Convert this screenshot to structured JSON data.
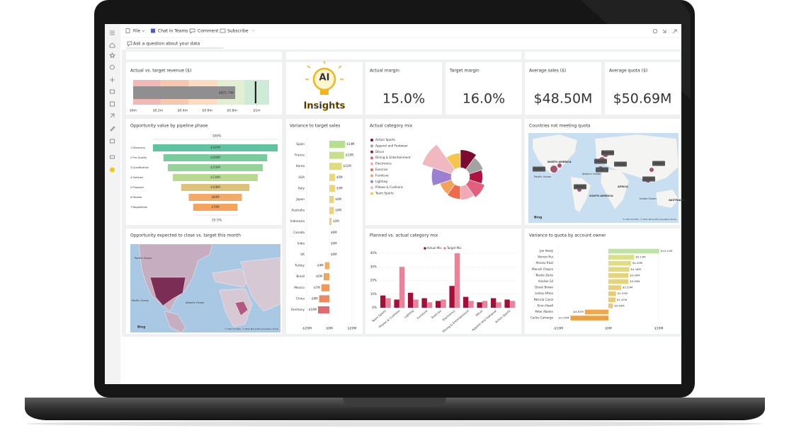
{
  "toolbar": {
    "items": [
      "File",
      "Chat in Teams",
      "Comment",
      "Subscribe",
      "···"
    ]
  },
  "qna": "Ask a question about your data",
  "tiles": {
    "revenue": {
      "title": "Actual vs. target revenue ($)",
      "value": 0.82574,
      "value_label": "$825.74K",
      "target": 0.99,
      "bands": [
        0.22,
        0.45,
        0.68,
        0.9,
        1.1
      ],
      "band_colors": [
        "#f2b8b8",
        "#f7c8b0",
        "#fbdcc0",
        "#e3efd3",
        "#cdebd6"
      ],
      "bar_color": "#8f8f8f",
      "xlim": [
        0,
        1.1
      ],
      "xticks": [
        {
          "value": 0,
          "label": "$0m"
        },
        {
          "value": 0.2,
          "label": "$0.2m"
        },
        {
          "value": 0.4,
          "label": "$0.4m"
        },
        {
          "value": 0.6,
          "label": "$0.6m"
        },
        {
          "value": 0.8,
          "label": "$0.8m"
        },
        {
          "value": 1,
          "label": "$1m"
        }
      ]
    },
    "ai": {
      "line1": "AI",
      "line2": "Insights"
    },
    "cards": [
      {
        "title": "Actual margin",
        "value": "15.0%"
      },
      {
        "title": "Target margin",
        "value": "16.0%"
      },
      {
        "title": "Average sales ($)",
        "value": "$48.50M"
      },
      {
        "title": "Average quota ($)",
        "value": "$50.69M"
      }
    ],
    "funnel": {
      "title": "Opportunity value by pipeline phase",
      "top_label": "100%",
      "bottom_label": "35.5%",
      "categories": [
        "1 Discovery",
        "2 Pre-Qualify",
        "3 Qualification",
        "4 Solution",
        "5 Proposal",
        "6 Review",
        "7 Negotiation"
      ],
      "values": [
        197,
        164,
        150,
        134,
        108,
        84,
        70
      ],
      "value_labels": [
        "$197M",
        "$164M",
        "$150M",
        "$134M",
        "$108M",
        "$84M",
        "$70M"
      ],
      "colors": [
        "#5ec4a0",
        "#78cc9c",
        "#94d49a",
        "#b8d98e",
        "#dcc27a",
        "#f2aa68",
        "#f6a35c"
      ]
    },
    "variance_sales": {
      "title": "Variance to target sales",
      "categories": [
        "Spain",
        "France",
        "Korea",
        "USA",
        "Italy",
        "Japan",
        "Australia",
        "Indonesia",
        "Canada",
        "India",
        "UK",
        "Turkey",
        "Brazil",
        "Mexico",
        "China",
        "Germany"
      ],
      "values": [
        14,
        13,
        11,
        5,
        5,
        4,
        4,
        2,
        0,
        0,
        0,
        -4,
        -5,
        -7,
        -9,
        -10
      ],
      "value_labels": [
        "$14M",
        "$13M",
        "$11M",
        "$5M",
        "$5M",
        "$4M",
        "$4M",
        "$2M",
        "$0M",
        "$0M",
        "$0M",
        "-$4M",
        "-$5M",
        "-$7M",
        "-$9M",
        "-$10M"
      ],
      "colors": [
        "#b6e08e",
        "#c9e08a",
        "#dfdc7e",
        "#ead77a",
        "#ead77a",
        "#eed27a",
        "#eed27a",
        "#f0cd78",
        "#f0cd78",
        "#f0cd78",
        "#f0cd78",
        "#f0b060",
        "#f0a45c",
        "#ee9a5c",
        "#ea8a5e",
        "#e06a6e"
      ],
      "xlim": [
        -20,
        20
      ],
      "xticks": [
        {
          "value": -20,
          "label": "-$20M"
        },
        {
          "value": 0,
          "label": "$0M"
        },
        {
          "value": 20,
          "label": "$20M"
        }
      ]
    },
    "category_mix": {
      "title": "Actual category mix",
      "categories": [
        "Action Sports",
        "Apparel and Footwear",
        "Décor",
        "Dining & Entertainment",
        "Electronics",
        "Exercise",
        "Furniture",
        "Lighting",
        "Pillows & Cushions",
        "Team Sports"
      ],
      "values": [
        22,
        18,
        16,
        20,
        17,
        16,
        15,
        24,
        38,
        18
      ],
      "colors": [
        "#7b0c2f",
        "#a3a3a3",
        "#b0133e",
        "#e0607e",
        "#f3a8b6",
        "#ef6a4a",
        "#f4a259",
        "#9b7fd1",
        "#f0b8c0",
        "#f6c54d"
      ]
    },
    "countries_map": {
      "title": "Countries not meeting quota",
      "regions": [
        "NORTH AMERICA",
        "SOUTH AMERICA",
        "AFRICA",
        "AUSTRALIA",
        "Pacific Ocean",
        "Atlantic Ocean",
        "Indian Ocean"
      ],
      "countries": [
        "Germany",
        "France",
        "Turkey",
        "UK",
        "Korea",
        "China",
        "Mexico",
        "Brazil"
      ],
      "brand": "Bing",
      "attribution": "© 2021 TomTom, © 2021 Microsoft Corporation Terms"
    },
    "opportunity_map": {
      "title": "Opportunity expected to close vs. target this month",
      "regions": [
        "Pacific Ocean",
        "Atlantic Ocean",
        "Pacific Ocean"
      ],
      "brand": "Bing",
      "attribution": "© 2021 TomTom, © 2021 Microsoft Corporation Terms"
    },
    "planned_actual": {
      "title": "Planned vs. actual category mix",
      "categories": [
        "Team Sports",
        "Pillows & Cushions",
        "Lighting",
        "Furniture",
        "Exercise",
        "Electronics",
        "Dining & Entertainment",
        "Décor",
        "Apparel and Footwear",
        "Action Sports"
      ],
      "series": [
        {
          "name": "Actual Mix",
          "color": "#a0103a",
          "values": [
            9,
            6,
            11,
            7,
            5,
            16,
            8,
            4,
            7,
            6
          ]
        },
        {
          "name": "Target Mix",
          "color": "#e8849a",
          "values": [
            7,
            30,
            6,
            4,
            6,
            40,
            5,
            5,
            4,
            5
          ]
        }
      ],
      "ylim": [
        0,
        40
      ],
      "yticks": [
        {
          "value": 0,
          "label": "0%"
        },
        {
          "value": 10,
          "label": "10%"
        },
        {
          "value": 20,
          "label": "20%"
        },
        {
          "value": 30,
          "label": "30%"
        },
        {
          "value": 40,
          "label": "40%"
        }
      ]
    },
    "quota_owner": {
      "title": "Variance to quota by account owner",
      "categories": [
        "Joe Healy",
        "Vernon Hui",
        "Alessio Rizzi",
        "Manish Chopra",
        "Nicole Zerto",
        "Analise Gil",
        "Derek Brown",
        "Lesley Alfaro",
        "Patricia Canal",
        "Ervin Hawll",
        "Peter Abelen",
        "Carlos Camargo"
      ],
      "values": [
        10.11,
        5.13,
        4.49,
        4.18,
        3.99,
        3.99,
        2.53,
        1.51,
        1.41,
        0.9,
        -4.67,
        -7.55
      ],
      "value_labels": [
        "$10.11M",
        "$5.13M",
        "$4.49M",
        "$4.18M",
        "$3.99M",
        "$3.99M",
        "$2.53M",
        "$1.51M",
        "$1.41M",
        "$0.90M",
        "-$4.67M",
        "-$7.55M"
      ],
      "colors": [
        "#bfe3a6",
        "#d8e08a",
        "#dfdd82",
        "#e2d97e",
        "#e4d57c",
        "#e4d57c",
        "#e8cf78",
        "#eccb76",
        "#eccb76",
        "#eec874",
        "#f0a848",
        "#eea040"
      ],
      "xlim": [
        -10,
        10
      ],
      "xticks": [
        {
          "value": -10,
          "label": "-$10M"
        },
        {
          "value": 0,
          "label": "$0M"
        },
        {
          "value": 10,
          "label": "$10M"
        }
      ]
    }
  }
}
